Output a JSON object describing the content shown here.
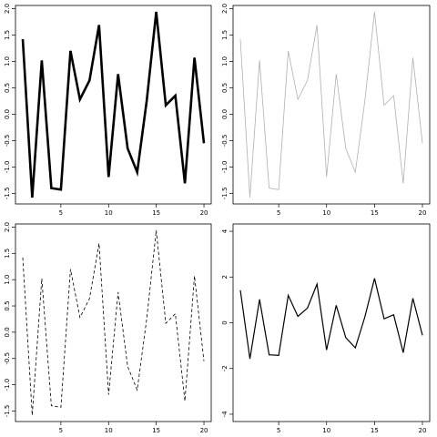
{
  "chart_data": [
    {
      "type": "line",
      "x": [
        1,
        2,
        3,
        4,
        5,
        6,
        7,
        8,
        9,
        10,
        11,
        12,
        13,
        14,
        15,
        16,
        17,
        18,
        19,
        20
      ],
      "series": [
        {
          "values": [
            1.42,
            -1.58,
            1.02,
            -1.4,
            -1.43,
            1.2,
            0.28,
            0.64,
            1.69,
            -1.19,
            0.76,
            -0.65,
            -1.1,
            0.26,
            1.94,
            0.17,
            0.35,
            -1.31,
            1.07,
            -0.55
          ],
          "color": "#000000",
          "line_style": "solid",
          "line_width": "thick"
        }
      ],
      "xlim": [
        0.24,
        20.76
      ],
      "ylim": [
        -1.7,
        2.06
      ],
      "x_ticks": [
        "5",
        "10",
        "15",
        "20"
      ],
      "y_ticks": [
        "-1.5",
        "-1.0",
        "-0.5",
        "0.0",
        "0.5",
        "1.0",
        "1.5",
        "2.0"
      ],
      "grid": false,
      "title": "",
      "xlabel": "",
      "ylabel": ""
    },
    {
      "type": "line",
      "x": [
        1,
        2,
        3,
        4,
        5,
        6,
        7,
        8,
        9,
        10,
        11,
        12,
        13,
        14,
        15,
        16,
        17,
        18,
        19,
        20
      ],
      "series": [
        {
          "values": [
            1.42,
            -1.58,
            1.02,
            -1.4,
            -1.43,
            1.2,
            0.28,
            0.64,
            1.69,
            -1.19,
            0.76,
            -0.65,
            -1.1,
            0.26,
            1.94,
            0.17,
            0.35,
            -1.31,
            1.07,
            -0.55
          ],
          "color": "#b0b0b0",
          "line_style": "solid",
          "line_width": "thin"
        }
      ],
      "xlim": [
        0.24,
        20.76
      ],
      "ylim": [
        -1.7,
        2.06
      ],
      "x_ticks": [
        "5",
        "10",
        "15",
        "20"
      ],
      "y_ticks": [
        "-1.5",
        "-1.0",
        "-0.5",
        "0.0",
        "0.5",
        "1.0",
        "1.5",
        "2.0"
      ],
      "grid": false,
      "title": "",
      "xlabel": "",
      "ylabel": ""
    },
    {
      "type": "line",
      "x": [
        1,
        2,
        3,
        4,
        5,
        6,
        7,
        8,
        9,
        10,
        11,
        12,
        13,
        14,
        15,
        16,
        17,
        18,
        19,
        20
      ],
      "series": [
        {
          "values": [
            1.42,
            -1.58,
            1.02,
            -1.4,
            -1.43,
            1.2,
            0.28,
            0.64,
            1.69,
            -1.19,
            0.76,
            -0.65,
            -1.1,
            0.26,
            1.94,
            0.17,
            0.35,
            -1.31,
            1.07,
            -0.55
          ],
          "color": "#000000",
          "line_style": "dashed",
          "line_width": "thin"
        }
      ],
      "xlim": [
        0.24,
        20.76
      ],
      "ylim": [
        -1.7,
        2.06
      ],
      "x_ticks": [
        "5",
        "10",
        "15",
        "20"
      ],
      "y_ticks": [
        "-1.5",
        "-1.0",
        "-0.5",
        "0.0",
        "0.5",
        "1.0",
        "1.5",
        "2.0"
      ],
      "grid": false,
      "title": "",
      "xlabel": "",
      "ylabel": ""
    },
    {
      "type": "line",
      "x": [
        1,
        2,
        3,
        4,
        5,
        6,
        7,
        8,
        9,
        10,
        11,
        12,
        13,
        14,
        15,
        16,
        17,
        18,
        19,
        20
      ],
      "series": [
        {
          "values": [
            1.42,
            -1.58,
            1.02,
            -1.4,
            -1.43,
            1.2,
            0.28,
            0.64,
            1.69,
            -1.19,
            0.76,
            -0.65,
            -1.1,
            0.26,
            1.94,
            0.17,
            0.35,
            -1.31,
            1.07,
            -0.55
          ],
          "color": "#000000",
          "line_style": "solid",
          "line_width": "normal"
        }
      ],
      "xlim": [
        0.24,
        20.76
      ],
      "ylim": [
        -4.32,
        4.32
      ],
      "x_ticks": [
        "5",
        "10",
        "15",
        "20"
      ],
      "y_ticks": [
        "-4",
        "-2",
        "0",
        "2",
        "4"
      ],
      "grid": false,
      "title": "",
      "xlabel": "",
      "ylabel": ""
    }
  ]
}
